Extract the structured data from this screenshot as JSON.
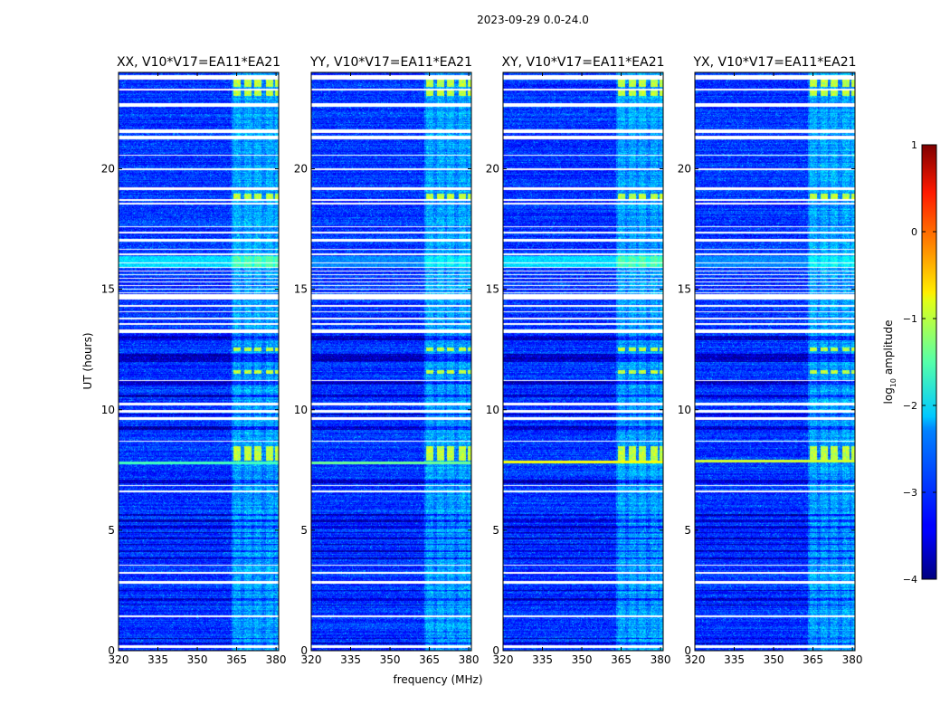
{
  "title": "2023-09-29 0.0-24.0",
  "chart_data": {
    "type": "heatmap",
    "xlabel": "frequency (MHz)",
    "ylabel": "UT (hours)",
    "xlim": [
      320,
      381
    ],
    "ylim": [
      0,
      24
    ],
    "xticks": [
      "320",
      "335",
      "350",
      "365",
      "380"
    ],
    "xtick_values": [
      320,
      335,
      350,
      365,
      380
    ],
    "yticks": [
      "0",
      "5",
      "10",
      "15",
      "20"
    ],
    "ytick_values": [
      0,
      5,
      10,
      15,
      20
    ],
    "panels": [
      {
        "title": "XX, V10*V17=EA11*EA21",
        "strong_line_hours": 7.8,
        "strong_level": -1.8,
        "noise_level_15_16": -2.3
      },
      {
        "title": "YY, V10*V17=EA11*EA21",
        "strong_line_hours": 7.8,
        "strong_level": -1.6,
        "noise_level_15_16": -2.7
      },
      {
        "title": "XY, V10*V17=EA11*EA21",
        "strong_line_hours": 7.85,
        "strong_level": -0.9,
        "noise_level_15_16": -2.3
      },
      {
        "title": "YX, V10*V17=EA11*EA21",
        "strong_line_hours": 7.9,
        "strong_level": -1.1,
        "noise_level_15_16": -2.7
      }
    ],
    "colorbar": {
      "label_prefix": "log",
      "label_sub": "10",
      "label_suffix": " amplitude",
      "vmin": -4,
      "vmax": 1,
      "ticks": [
        "1",
        "0",
        "−1",
        "−2",
        "−3",
        "−4"
      ],
      "tick_values": [
        1,
        0,
        -1,
        -2,
        -3,
        -4
      ],
      "colormap": "jet"
    },
    "rfi_band_mhz": [
      363,
      381
    ],
    "rfi_channels_mhz": [
      [
        363.5,
        366.5
      ],
      [
        367.8,
        370.5
      ],
      [
        371.5,
        374.2
      ],
      [
        376,
        378.8
      ],
      [
        379.5,
        381
      ]
    ],
    "bright_rows_hours": [
      [
        23.4,
        23.7
      ],
      [
        23.05,
        23.25
      ],
      [
        18.75,
        19.0
      ],
      [
        12.45,
        12.6
      ],
      [
        11.5,
        11.65
      ],
      [
        7.9,
        8.5
      ]
    ],
    "flagged_hours": [
      [
        23.7,
        23.9
      ],
      [
        23.25,
        23.35
      ],
      [
        22.6,
        22.75
      ],
      [
        21.25,
        21.4
      ],
      [
        21.5,
        21.65
      ],
      [
        20.55,
        20.6
      ],
      [
        19.95,
        20.05
      ],
      [
        19.15,
        19.25
      ],
      [
        18.7,
        18.75
      ],
      [
        18.55,
        18.6
      ],
      [
        17.6,
        17.65
      ],
      [
        17.35,
        17.4
      ],
      [
        17.0,
        17.1
      ],
      [
        16.65,
        16.7
      ],
      [
        16.45,
        16.5
      ],
      [
        16.1,
        16.15
      ],
      [
        15.9,
        15.95
      ],
      [
        15.75,
        15.8
      ],
      [
        15.6,
        15.65
      ],
      [
        15.45,
        15.5
      ],
      [
        15.3,
        15.35
      ],
      [
        15.15,
        15.2
      ],
      [
        15.0,
        15.05
      ],
      [
        14.85,
        14.9
      ],
      [
        14.6,
        14.8
      ],
      [
        14.3,
        14.35
      ],
      [
        14.05,
        14.1
      ],
      [
        13.75,
        13.85
      ],
      [
        13.55,
        13.6
      ],
      [
        13.2,
        13.35
      ],
      [
        11.2,
        11.25
      ],
      [
        10.2,
        10.3
      ],
      [
        9.9,
        10.0
      ],
      [
        9.6,
        9.7
      ],
      [
        8.7,
        8.75
      ],
      [
        6.85,
        6.9
      ],
      [
        6.6,
        6.65
      ],
      [
        3.55,
        3.6
      ],
      [
        3.2,
        3.3
      ],
      [
        2.8,
        2.9
      ],
      [
        1.4,
        1.5
      ],
      [
        0.15,
        0.25
      ]
    ],
    "dark_rows_hours": [
      [
        12.9,
        13.1
      ],
      [
        12.0,
        12.35
      ],
      [
        11.05,
        11.2
      ],
      [
        10.55,
        10.65
      ],
      [
        9.8,
        9.85
      ],
      [
        9.2,
        9.35
      ],
      [
        6.95,
        7.1
      ],
      [
        5.6,
        5.7
      ],
      [
        5.35,
        5.45
      ],
      [
        5.1,
        5.2
      ],
      [
        4.9,
        4.95
      ],
      [
        4.65,
        4.7
      ],
      [
        4.4,
        4.45
      ],
      [
        4.1,
        4.2
      ],
      [
        3.8,
        3.9
      ],
      [
        2.5,
        2.55
      ],
      [
        2.1,
        2.2
      ],
      [
        1.9,
        1.95
      ],
      [
        0.5,
        0.55
      ],
      [
        0.3,
        0.35
      ]
    ]
  }
}
